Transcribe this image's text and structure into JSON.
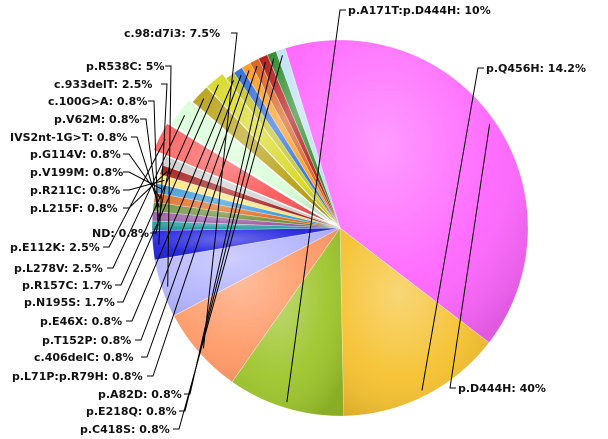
{
  "chart_data": {
    "type": "pie",
    "title": "",
    "slices": [
      {
        "label": "p.D444H: 40%",
        "value": 40.0,
        "color": "#ff66ff"
      },
      {
        "label": "p.Q456H: 14.2%",
        "value": 14.2,
        "color": "#f5c12e"
      },
      {
        "label": "p.A171T:p.D444H: 10%",
        "value": 10.0,
        "color": "#9dc52b"
      },
      {
        "label": "c.98:d7i3: 7.5%",
        "value": 7.5,
        "color": "#ff9966"
      },
      {
        "label": "p.R538C: 5%",
        "value": 5.0,
        "color": "#b3b3ff"
      },
      {
        "label": "c.933delT: 2.5%",
        "value": 2.5,
        "color": "#1f1fe0"
      },
      {
        "label": "c.100G>A: 0.8%",
        "value": 0.8,
        "color": "#1f9aa0"
      },
      {
        "label": "p.V62M: 0.8%",
        "value": 0.8,
        "color": "#9a5aa6"
      },
      {
        "label": "IVS2nt-1G>T: 0.8%",
        "value": 0.8,
        "color": "#6c8f3a"
      },
      {
        "label": "p.G114V: 0.8%",
        "value": 0.8,
        "color": "#e06a1f"
      },
      {
        "label": "p.V199M: 0.8%",
        "value": 0.8,
        "color": "#3d9ad9"
      },
      {
        "label": "p.R211C: 0.8%",
        "value": 0.8,
        "color": "#ffe680"
      },
      {
        "label": "p.L215F: 0.8%",
        "value": 0.8,
        "color": "#a61e1e"
      },
      {
        "label": "ND: 0.8%",
        "value": 0.8,
        "color": "#cfcfcf"
      },
      {
        "label": "p.E112K: 2.5%",
        "value": 2.5,
        "color": "#ff5a5a"
      },
      {
        "label": "p.L278V: 2.5%",
        "value": 2.5,
        "color": "#d9ffd9"
      },
      {
        "label": "p.R157C: 1.7%",
        "value": 1.7,
        "color": "#b8a214"
      },
      {
        "label": "p.N195S: 1.7%",
        "value": 1.7,
        "color": "#d9d926"
      },
      {
        "label": "p.E46X: 0.8%",
        "value": 0.8,
        "color": "#c4c422"
      },
      {
        "label": "p.T152P: 0.8%",
        "value": 0.8,
        "color": "#2f6fd6"
      },
      {
        "label": "c.406delC: 0.8%",
        "value": 0.8,
        "color": "#ff9a1f"
      },
      {
        "label": "p.L71P:p.R79H: 0.8%",
        "value": 0.8,
        "color": "#d9601f"
      },
      {
        "label": "p.A82D: 0.8%",
        "value": 0.8,
        "color": "#b01818"
      },
      {
        "label": "p.E218Q: 0.8%",
        "value": 0.8,
        "color": "#2e8a2e"
      },
      {
        "label": "p.C418S: 0.8%",
        "value": 0.8,
        "color": "#bfe0f5"
      }
    ]
  }
}
